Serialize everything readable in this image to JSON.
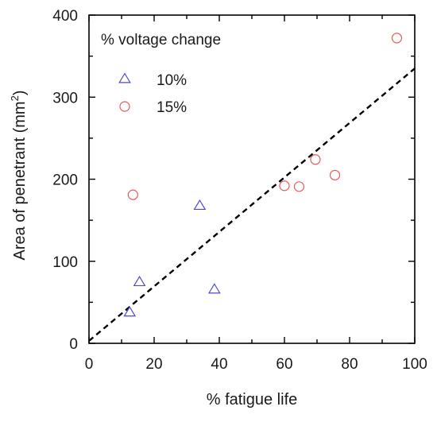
{
  "chart_data": {
    "type": "scatter",
    "xlabel": "% fatigue life",
    "ylabel": "Area of penetrant (mm2)",
    "xlim": [
      0,
      100
    ],
    "ylim": [
      0,
      400
    ],
    "x_ticks": [
      "0",
      "20",
      "40",
      "60",
      "80",
      "100"
    ],
    "y_ticks": [
      "0",
      "100",
      "200",
      "300",
      "400"
    ],
    "legend_title": "% voltage change",
    "legend_position": "top-left",
    "grid": false,
    "series": [
      {
        "name": "10%",
        "marker": "triangle",
        "color": "#4b4bd8",
        "points": [
          {
            "x": 12.5,
            "y": 38
          },
          {
            "x": 15.5,
            "y": 75
          },
          {
            "x": 34,
            "y": 168
          },
          {
            "x": 38.5,
            "y": 66
          }
        ]
      },
      {
        "name": "15%",
        "marker": "circle",
        "color": "#e85a5a",
        "points": [
          {
            "x": 13.5,
            "y": 181
          },
          {
            "x": 60,
            "y": 192
          },
          {
            "x": 64.5,
            "y": 191
          },
          {
            "x": 69.5,
            "y": 224
          },
          {
            "x": 75.5,
            "y": 205
          },
          {
            "x": 94.5,
            "y": 372
          }
        ]
      }
    ],
    "fit_line": {
      "style": "dashed",
      "color": "#000000",
      "points": [
        {
          "x": 0,
          "y": 3
        },
        {
          "x": 100,
          "y": 335
        }
      ]
    }
  }
}
